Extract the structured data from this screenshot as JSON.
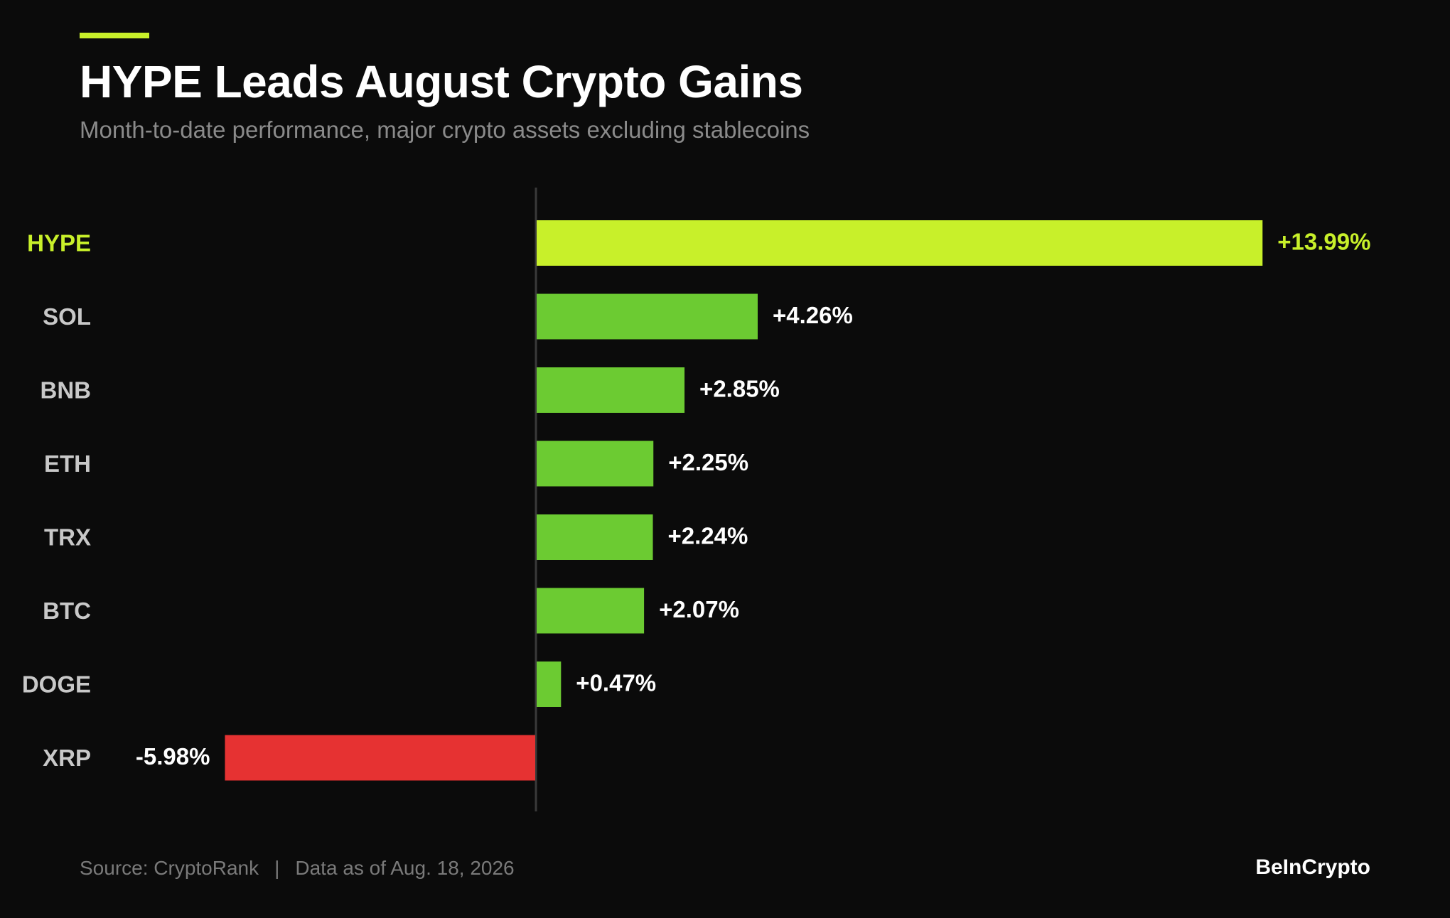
{
  "header": {
    "title": "HYPE Leads August Crypto Gains",
    "subtitle": "Month-to-date performance, major crypto assets excluding stablecoins"
  },
  "footer": {
    "source": "Source: CryptoRank",
    "separator": "|",
    "date_note": "Data as of Aug. 18, 2026",
    "brand": "BeInCrypto"
  },
  "colors": {
    "background": "#0b0b0b",
    "accent": "#c8f02a",
    "positive": "#6ccb32",
    "negative": "#e63232",
    "category_text": "#c8c8c8",
    "value_text": "#ffffff"
  },
  "chart_data": {
    "type": "bar",
    "orientation": "horizontal",
    "categories": [
      "HYPE",
      "SOL",
      "BNB",
      "ETH",
      "TRX",
      "BTC",
      "DOGE",
      "XRP"
    ],
    "values": [
      13.99,
      4.26,
      2.85,
      2.25,
      2.24,
      2.07,
      0.47,
      -5.98
    ],
    "value_labels": [
      "+13.99%",
      "+4.26%",
      "+2.85%",
      "+2.25%",
      "+2.24%",
      "+2.07%",
      "+0.47%",
      "-5.98%"
    ],
    "highlight": "HYPE",
    "title": "HYPE Leads August Crypto Gains",
    "xlabel": "",
    "ylabel": "",
    "grid": false,
    "legend": "none"
  }
}
